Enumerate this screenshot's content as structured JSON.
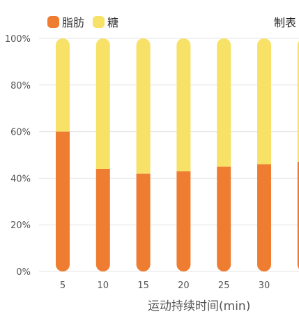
{
  "legend": {
    "items": [
      {
        "label": "脂肪",
        "color": "#ee7d31"
      },
      {
        "label": "糖",
        "color": "#f7e267"
      }
    ]
  },
  "corner_label": "制表",
  "chart_data": {
    "type": "bar",
    "stacked": true,
    "categories": [
      "5",
      "10",
      "15",
      "20",
      "25",
      "30",
      ""
    ],
    "series": [
      {
        "name": "脂肪",
        "color": "#ee7d31",
        "values": [
          60,
          44,
          42,
          43,
          45,
          46,
          47
        ]
      },
      {
        "name": "糖",
        "color": "#f7e267",
        "values": [
          40,
          56,
          58,
          57,
          55,
          54,
          53
        ]
      }
    ],
    "xlabel": "运动持续时间(min)",
    "ylabel": "",
    "ylim": [
      0,
      100
    ],
    "yticks": [
      "0%",
      "20%",
      "40%",
      "60%",
      "80%",
      "100%"
    ],
    "grid": true,
    "legend_position": "top-left"
  }
}
